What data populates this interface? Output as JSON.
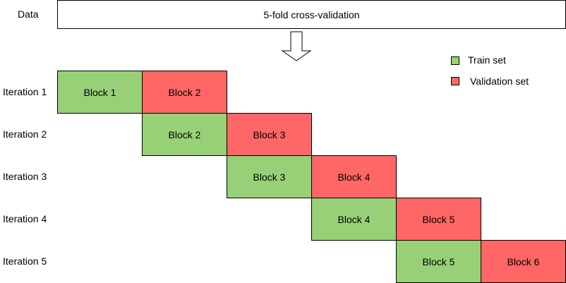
{
  "data_row": {
    "label": "Data",
    "box_text": "5-fold cross-validation"
  },
  "arrow": {
    "icon": "down-arrow-icon"
  },
  "legend": {
    "items": [
      {
        "label": "Train set",
        "color": "#97d077"
      },
      {
        "label": "Validation set",
        "color": "#ff6666"
      }
    ]
  },
  "iterations": [
    {
      "label": "Iteration 1",
      "train": "Block 1",
      "validation": "Block 2"
    },
    {
      "label": "Iteration 2",
      "train": "Block 2",
      "validation": "Block 3"
    },
    {
      "label": "Iteration 3",
      "train": "Block 3",
      "validation": "Block 4"
    },
    {
      "label": "Iteration 4",
      "train": "Block 4",
      "validation": "Block 5"
    },
    {
      "label": "Iteration 5",
      "train": "Block 5",
      "validation": "Block 6"
    }
  ]
}
